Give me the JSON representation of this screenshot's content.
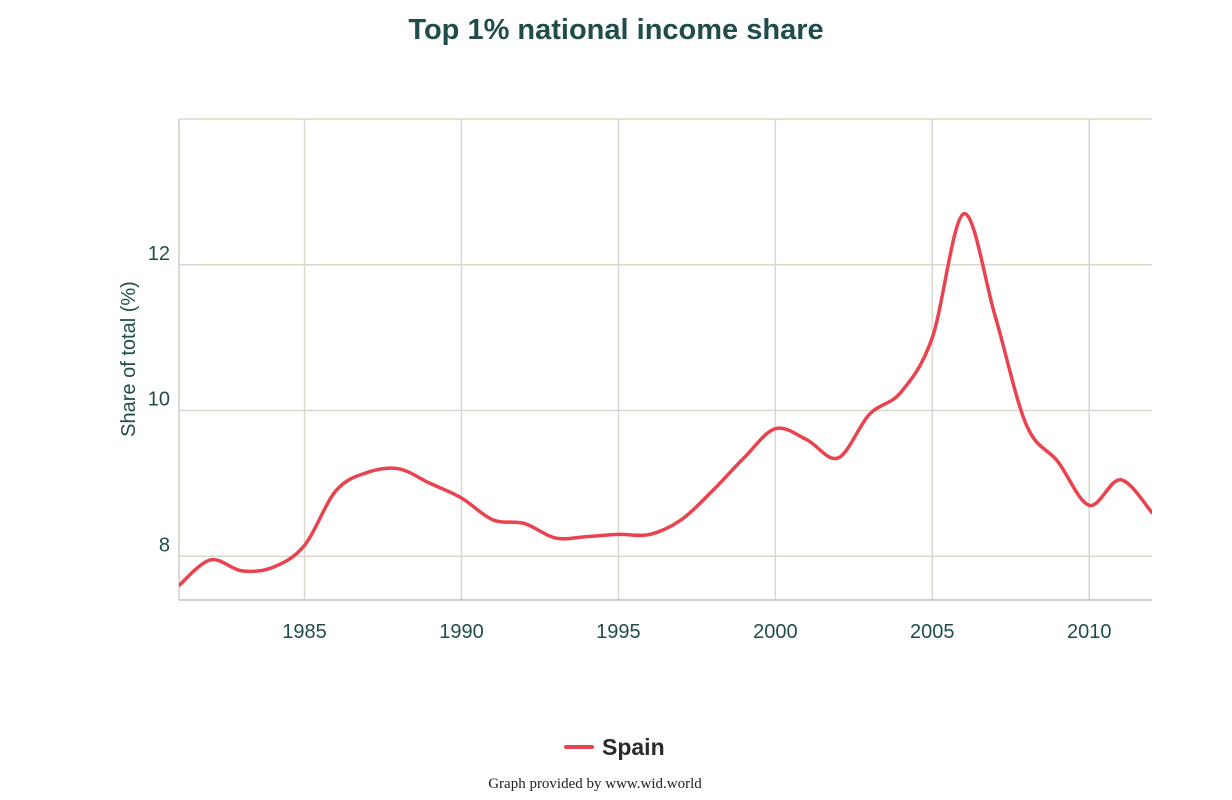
{
  "chart_data": {
    "type": "line",
    "title": "Top 1% national income share",
    "xlabel": "",
    "ylabel": "Share of total (%)",
    "xlim": [
      1981,
      2012
    ],
    "ylim": [
      7.4,
      14
    ],
    "x_ticks": [
      1985,
      1990,
      1995,
      2000,
      2005,
      2010
    ],
    "y_ticks": [
      8,
      10,
      12
    ],
    "grid": true,
    "legend_position": "bottom-center",
    "series": [
      {
        "name": "Spain",
        "color": "#e8434f",
        "x": [
          1981,
          1982,
          1983,
          1984,
          1985,
          1986,
          1987,
          1988,
          1989,
          1990,
          1991,
          1992,
          1993,
          1994,
          1995,
          1996,
          1997,
          1998,
          1999,
          2000,
          2001,
          2002,
          2003,
          2004,
          2005,
          2006,
          2007,
          2008,
          2009,
          2010,
          2011,
          2012
        ],
        "values": [
          7.6,
          7.95,
          7.8,
          7.85,
          8.15,
          8.9,
          9.15,
          9.2,
          9.0,
          8.8,
          8.5,
          8.45,
          8.25,
          8.27,
          8.3,
          8.3,
          8.5,
          8.9,
          9.35,
          9.75,
          9.6,
          9.35,
          9.95,
          10.25,
          11.0,
          12.7,
          11.3,
          9.8,
          9.3,
          8.7,
          9.05,
          8.6
        ]
      }
    ]
  },
  "footer": {
    "credit": "Graph provided by www.wid.world"
  }
}
